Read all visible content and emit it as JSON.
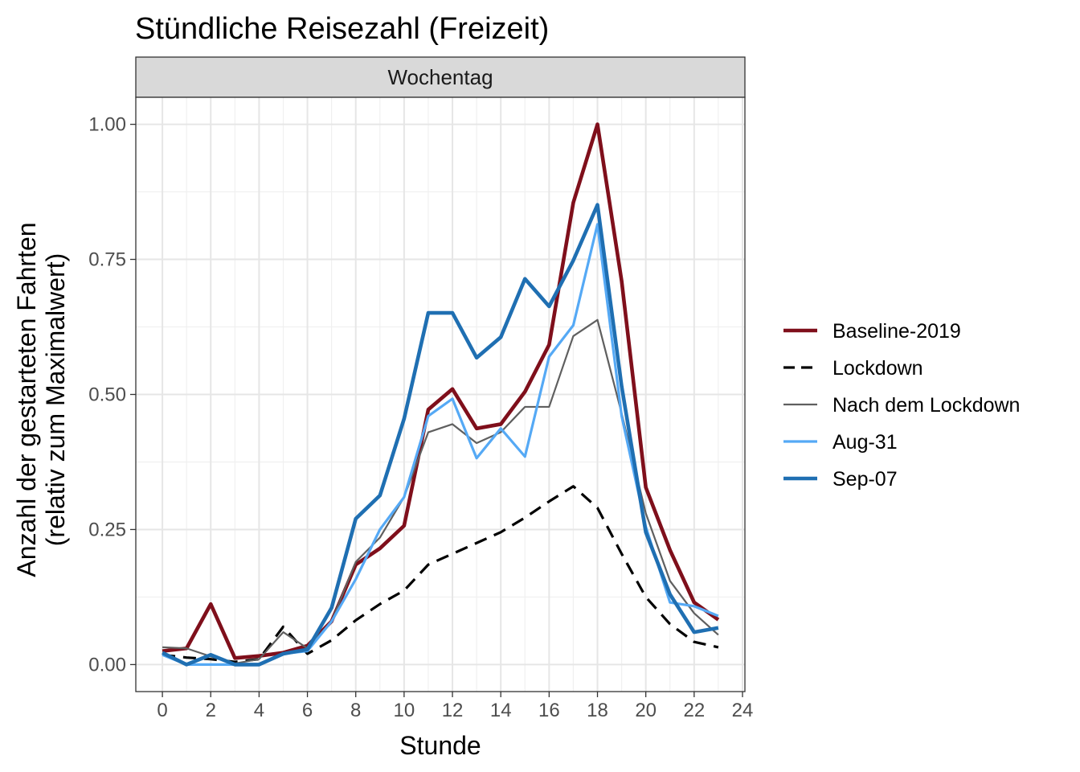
{
  "chart_data": {
    "type": "line",
    "title": "Stündliche Reisezahl (Freizeit)",
    "facet": "Wochentag",
    "xlabel": "Stunde",
    "ylabel_line1": "Anzahl der gestarteten Fahrten",
    "ylabel_line2": "(relativ zum Maximalwert)",
    "xlim": [
      -1.1,
      24.1
    ],
    "ylim": [
      -0.05,
      1.05
    ],
    "x_ticks": [
      0,
      2,
      4,
      6,
      8,
      10,
      12,
      14,
      16,
      18,
      20,
      22,
      24
    ],
    "x_tick_labels": [
      "0",
      "2",
      "4",
      "6",
      "8",
      "10",
      "12",
      "14",
      "16",
      "18",
      "20",
      "22",
      "24"
    ],
    "y_ticks": [
      0,
      0.25,
      0.5,
      0.75,
      1.0
    ],
    "y_tick_labels": [
      "0.00",
      "0.25",
      "0.50",
      "0.75",
      "1.00"
    ],
    "grid": true,
    "legend_position": "right",
    "x": [
      0,
      1,
      2,
      3,
      4,
      5,
      6,
      7,
      8,
      9,
      10,
      11,
      12,
      13,
      14,
      15,
      16,
      17,
      18,
      19,
      20,
      21,
      22,
      23
    ],
    "series": [
      {
        "name": "Baseline-2019",
        "color": "#7f0f1b",
        "dash": "solid",
        "weight": "thick",
        "values": [
          0.025,
          0.03,
          0.112,
          0.012,
          0.016,
          0.022,
          0.035,
          0.08,
          0.185,
          0.215,
          0.257,
          0.472,
          0.51,
          0.437,
          0.445,
          0.505,
          0.592,
          0.855,
          1.0,
          0.71,
          0.328,
          0.212,
          0.115,
          0.083
        ]
      },
      {
        "name": "Lockdown",
        "color": "#000000",
        "dash": "dashed",
        "weight": "medium",
        "values": [
          0.018,
          0.013,
          0.01,
          0.005,
          0.01,
          0.07,
          0.02,
          0.045,
          0.082,
          0.112,
          0.137,
          0.185,
          0.205,
          0.225,
          0.245,
          0.272,
          0.302,
          0.33,
          0.29,
          0.205,
          0.125,
          0.075,
          0.042,
          0.032
        ]
      },
      {
        "name": "Nach dem Lockdown",
        "color": "#5f5f5f",
        "dash": "solid",
        "weight": "thin",
        "values": [
          0.032,
          0.03,
          0.015,
          0.002,
          0.01,
          0.06,
          0.03,
          0.08,
          0.19,
          0.235,
          0.31,
          0.43,
          0.445,
          0.41,
          0.43,
          0.477,
          0.477,
          0.608,
          0.638,
          0.465,
          0.28,
          0.155,
          0.095,
          0.055
        ]
      },
      {
        "name": "Aug-31",
        "color": "#55a9f5",
        "dash": "solid",
        "weight": "medium",
        "values": [
          0.018,
          0.0,
          0.0,
          0.0,
          0.0,
          0.02,
          0.025,
          0.08,
          0.158,
          0.25,
          0.31,
          0.46,
          0.492,
          0.382,
          0.437,
          0.385,
          0.57,
          0.628,
          0.815,
          0.46,
          0.255,
          0.115,
          0.108,
          0.09
        ]
      },
      {
        "name": "Sep-07",
        "color": "#1f6fb2",
        "dash": "solid",
        "weight": "thick",
        "values": [
          0.022,
          0.0,
          0.018,
          0.0,
          0.0,
          0.02,
          0.028,
          0.105,
          0.27,
          0.313,
          0.455,
          0.651,
          0.651,
          0.568,
          0.606,
          0.714,
          0.663,
          0.748,
          0.851,
          0.515,
          0.245,
          0.13,
          0.06,
          0.068
        ]
      }
    ]
  }
}
